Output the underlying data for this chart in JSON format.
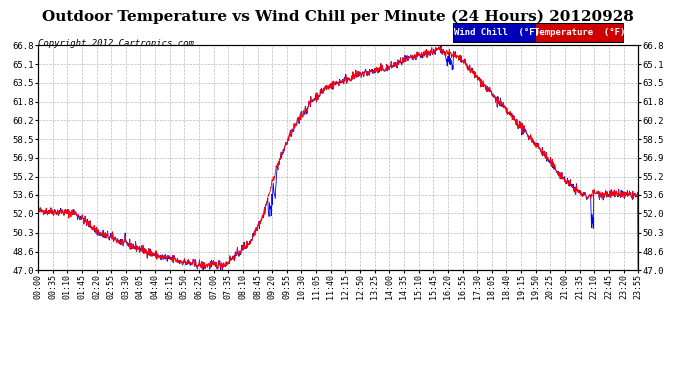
{
  "title": "Outdoor Temperature vs Wind Chill per Minute (24 Hours) 20120928",
  "copyright": "Copyright 2012 Cartronics.com",
  "ylim": [
    47.0,
    66.8
  ],
  "yticks": [
    47.0,
    48.6,
    50.3,
    52.0,
    53.6,
    55.2,
    56.9,
    58.5,
    60.2,
    61.8,
    63.5,
    65.1,
    66.8
  ],
  "bg_color": "#ffffff",
  "grid_color": "#bbbbbb",
  "wind_chill_color": "#0000ff",
  "temp_color": "#ff0000",
  "title_fontsize": 11,
  "tick_fontsize": 6.5,
  "xlabel_fontsize": 6,
  "xtick_labels": [
    "00:00",
    "00:35",
    "01:10",
    "01:45",
    "02:20",
    "02:55",
    "03:30",
    "04:05",
    "04:40",
    "05:15",
    "05:50",
    "06:25",
    "07:00",
    "07:35",
    "08:10",
    "08:45",
    "09:20",
    "09:55",
    "10:30",
    "11:05",
    "11:40",
    "12:15",
    "12:50",
    "13:25",
    "14:00",
    "14:35",
    "15:10",
    "15:45",
    "16:20",
    "16:55",
    "17:30",
    "18:05",
    "18:40",
    "19:15",
    "19:50",
    "20:25",
    "21:00",
    "21:35",
    "22:10",
    "22:45",
    "23:20",
    "23:55"
  ]
}
